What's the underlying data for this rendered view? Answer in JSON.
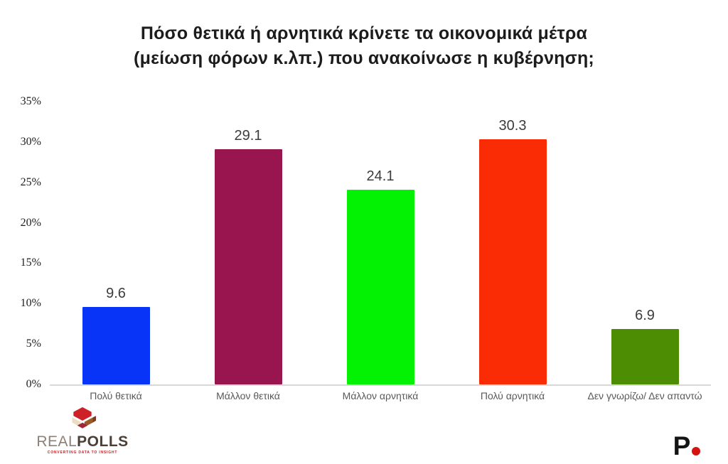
{
  "title": {
    "line1": "Πόσο θετικά ή αρνητικά κρίνετε τα οικονομικά μέτρα",
    "line2": "(μείωση φόρων κ.λπ.) που ανακοίνωσε η κυβέρνηση;"
  },
  "chart_data": {
    "type": "bar",
    "title": "Πόσο θετικά ή αρνητικά κρίνετε τα οικονομικά μέτρα (μείωση φόρων κ.λπ.) που ανακοίνωσε η κυβέρνηση;",
    "categories": [
      "Πολύ θετικά",
      "Μάλλον θετικά",
      "Μάλλον αρνητικά",
      "Πολύ αρνητικά",
      "Δεν γνωρίζω/ Δεν απαντώ"
    ],
    "values": [
      9.6,
      29.1,
      24.1,
      30.3,
      6.9
    ],
    "bar_colors": [
      "#0834f8",
      "#98154f",
      "#03f103",
      "#fa2c06",
      "#4d8d04"
    ],
    "xlabel": "",
    "ylabel": "",
    "ylim": [
      0,
      35
    ],
    "yticks": [
      "0%",
      "5%",
      "10%",
      "15%",
      "20%",
      "25%",
      "30%",
      "35%"
    ],
    "grid": false,
    "legend": false,
    "value_labels": true,
    "baseline_color": "#d9d9d9"
  },
  "footer": {
    "realpolls": {
      "name_light": "REAL",
      "name_bold": "POLLS",
      "tagline": "CONVERTING DATA TO INSIGHT",
      "icon_colors": {
        "red": "#ce2027",
        "cream": "#e9ddc2",
        "brown": "#9c5a27",
        "maroon": "#a1273a"
      }
    },
    "brand_right": {
      "letter": "P",
      "dot_color": "#d6130e"
    }
  }
}
